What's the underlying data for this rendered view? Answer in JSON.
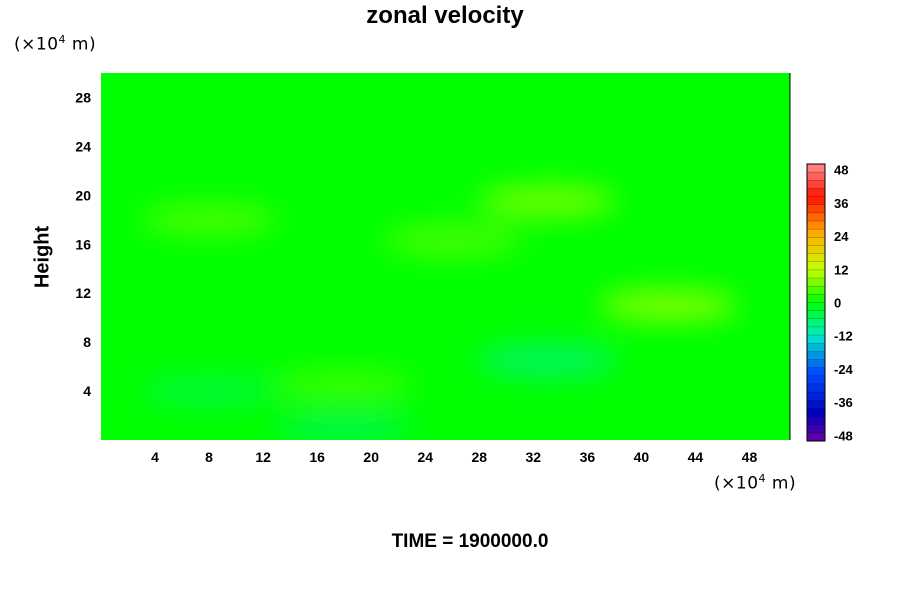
{
  "chart_data": {
    "type": "heatmap",
    "title": "zonal velocity",
    "xlabel": "",
    "ylabel": "Height",
    "x_unit_prefix": "(×10",
    "x_unit_exp": "4",
    "x_unit_suffix": " m)",
    "y_unit_prefix": "(×10",
    "y_unit_exp": "4",
    "y_unit_suffix": " m)",
    "xlim": [
      0,
      51
    ],
    "ylim": [
      0,
      30
    ],
    "x_ticks": [
      "4",
      "8",
      "12",
      "16",
      "20",
      "24",
      "28",
      "32",
      "36",
      "40",
      "44",
      "48"
    ],
    "y_ticks": [
      "4",
      "8",
      "12",
      "16",
      "20",
      "24",
      "28"
    ],
    "colorbar": {
      "min": -50,
      "max": 50,
      "ticks": [
        "48",
        "36",
        "24",
        "12",
        "0",
        "-12",
        "-24",
        "-36",
        "-48"
      ],
      "levels": 34
    },
    "field_description_level_mean": 0,
    "features": [
      {
        "x": 33,
        "y": 19.5,
        "value": 8
      },
      {
        "x": 42,
        "y": 11,
        "value": 9
      },
      {
        "x": 33,
        "y": 6.5,
        "value": -7
      },
      {
        "x": 18,
        "y": 4.5,
        "value": 4
      },
      {
        "x": 18,
        "y": 1,
        "value": -5
      },
      {
        "x": 26,
        "y": 16.3,
        "value": 5
      },
      {
        "x": 8,
        "y": 18,
        "value": 5
      },
      {
        "x": 8,
        "y": 4,
        "value": -4
      }
    ],
    "footer": "TIME = 1900000.0"
  }
}
